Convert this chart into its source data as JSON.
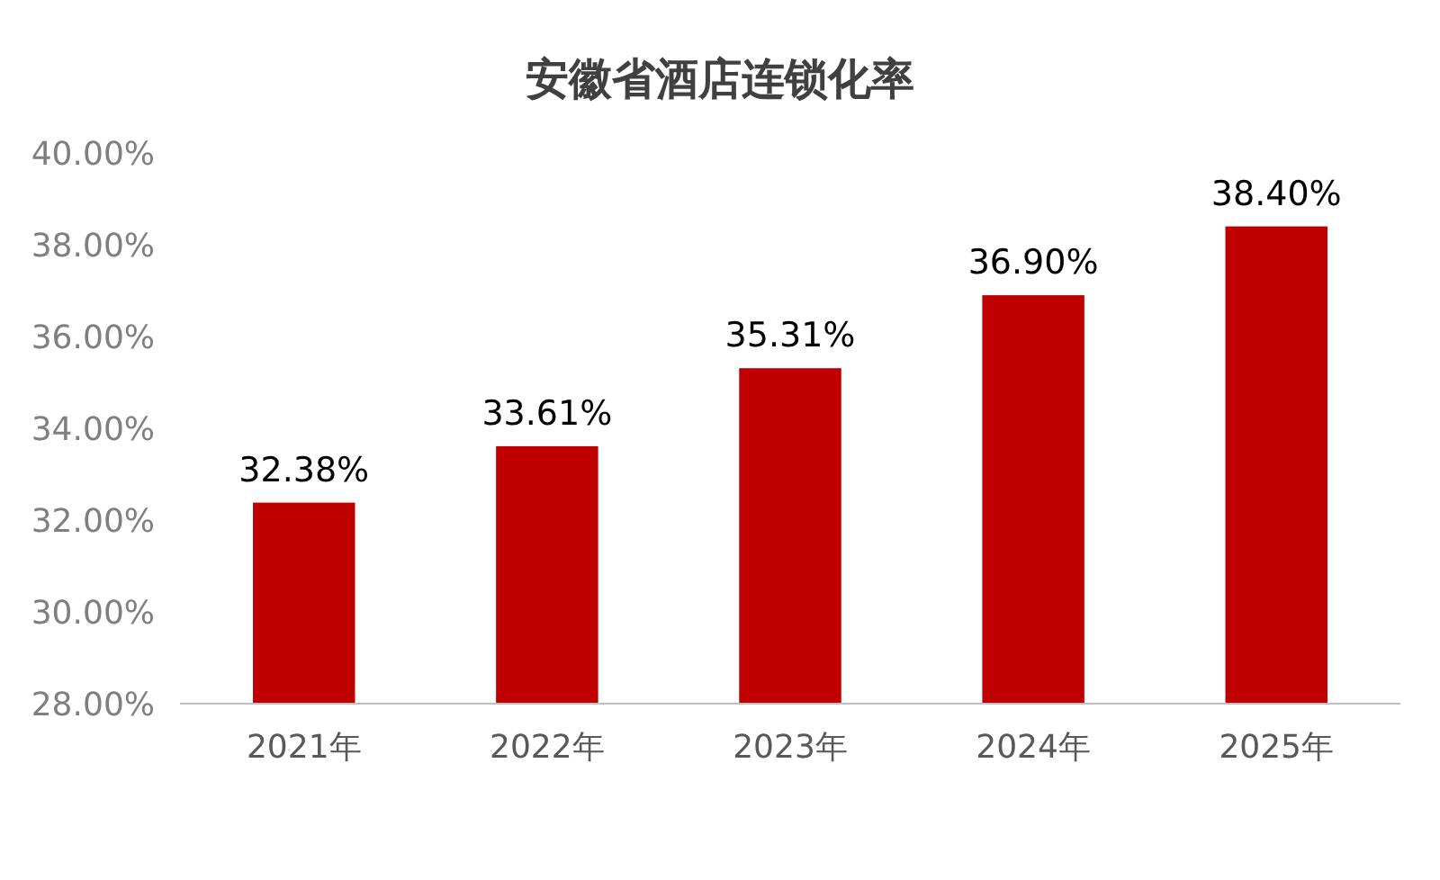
{
  "chart_data": {
    "type": "bar",
    "title": "安徽省酒店连锁化率",
    "categories": [
      "2021年",
      "2022年",
      "2023年",
      "2024年",
      "2025年"
    ],
    "values": [
      32.38,
      33.61,
      35.31,
      36.9,
      38.4
    ],
    "value_labels": [
      "32.38%",
      "33.61%",
      "35.31%",
      "36.90%",
      "38.40%"
    ],
    "color": "#c00000",
    "ylim": [
      28,
      40
    ],
    "yticks": [
      {
        "value": 28,
        "label": "28.00%"
      },
      {
        "value": 30,
        "label": "30.00%"
      },
      {
        "value": 32,
        "label": "32.00%"
      },
      {
        "value": 34,
        "label": "34.00%"
      },
      {
        "value": 36,
        "label": "36.00%"
      },
      {
        "value": 38,
        "label": "38.00%"
      },
      {
        "value": 40,
        "label": "40.00%"
      }
    ],
    "grid": false
  }
}
